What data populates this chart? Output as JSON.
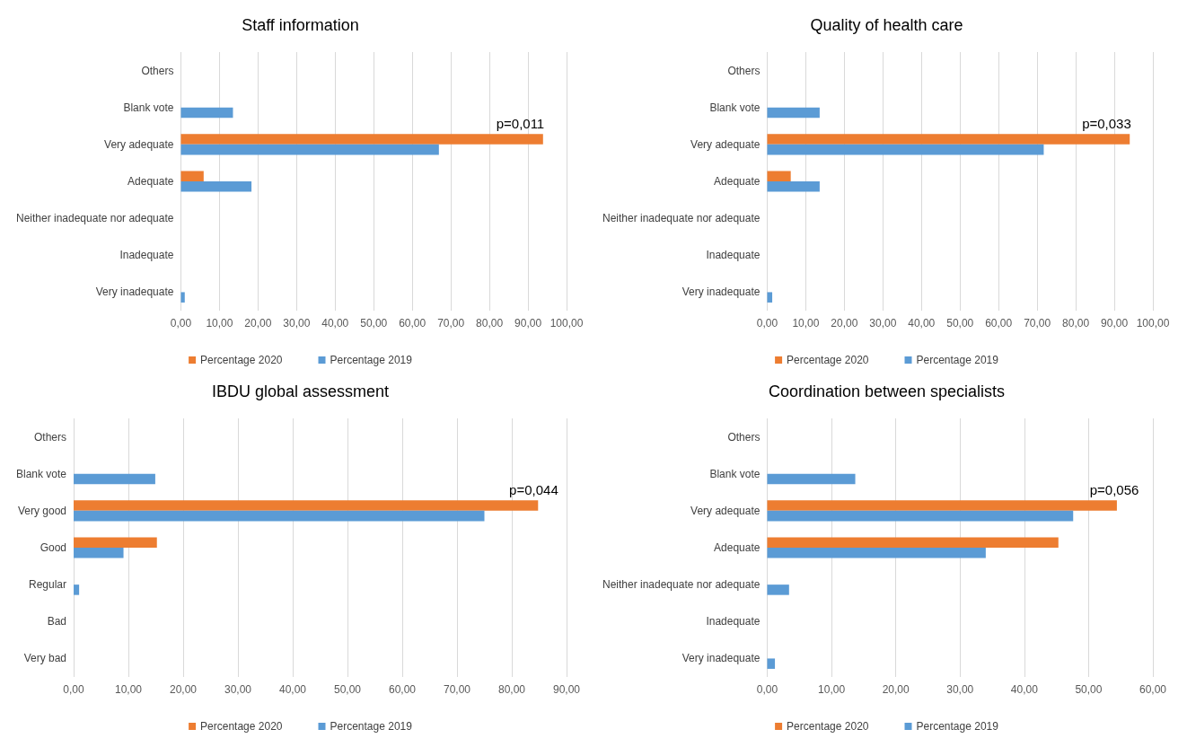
{
  "chart_data": [
    {
      "type": "bar",
      "orientation": "horizontal",
      "title": "Staff information",
      "categories": [
        "Others",
        "Blank vote",
        "Very adequate",
        "Adequate",
        "Neither inadequate nor adequate",
        "Inadequate",
        "Very inadequate"
      ],
      "series": [
        {
          "name": "Percentage 2020",
          "color": "#ed7d31",
          "values": [
            null,
            null,
            93.9,
            5.9,
            null,
            null,
            null
          ]
        },
        {
          "name": "Percentage 2019",
          "color": "#5b9bd5",
          "values": [
            null,
            13.5,
            66.9,
            18.3,
            null,
            null,
            1.0
          ]
        }
      ],
      "xlim": [
        0,
        100
      ],
      "xticks": [
        {
          "value": 0,
          "label": "0,00"
        },
        {
          "value": 10,
          "label": "10,00"
        },
        {
          "value": 20,
          "label": "20,00"
        },
        {
          "value": 30,
          "label": "30,00"
        },
        {
          "value": 40,
          "label": "40,00"
        },
        {
          "value": 50,
          "label": "50,00"
        },
        {
          "value": 60,
          "label": "60,00"
        },
        {
          "value": 70,
          "label": "70,00"
        },
        {
          "value": 80,
          "label": "80,00"
        },
        {
          "value": 90,
          "label": "90,00"
        },
        {
          "value": 100,
          "label": "100,00"
        }
      ],
      "annotations": [
        {
          "text": "p=0,011",
          "x": 88,
          "y": "Very adequate"
        }
      ],
      "grid": "x",
      "legend": "bottom"
    },
    {
      "type": "bar",
      "orientation": "horizontal",
      "title": "Quality of health care",
      "categories": [
        "Others",
        "Blank vote",
        "Very adequate",
        "Adequate",
        "Neither inadequate nor adequate",
        "Inadequate",
        "Very inadequate"
      ],
      "series": [
        {
          "name": "Percentage 2020",
          "color": "#ed7d31",
          "values": [
            null,
            null,
            94.0,
            6.1,
            null,
            null,
            null
          ]
        },
        {
          "name": "Percentage 2019",
          "color": "#5b9bd5",
          "values": [
            null,
            13.6,
            71.7,
            13.6,
            null,
            null,
            1.3
          ]
        }
      ],
      "xlim": [
        0,
        100
      ],
      "xticks": [
        {
          "value": 0,
          "label": "0,00"
        },
        {
          "value": 10,
          "label": "10,00"
        },
        {
          "value": 20,
          "label": "20,00"
        },
        {
          "value": 30,
          "label": "30,00"
        },
        {
          "value": 40,
          "label": "40,00"
        },
        {
          "value": 50,
          "label": "50,00"
        },
        {
          "value": 60,
          "label": "60,00"
        },
        {
          "value": 70,
          "label": "70,00"
        },
        {
          "value": 80,
          "label": "80,00"
        },
        {
          "value": 90,
          "label": "90,00"
        },
        {
          "value": 100,
          "label": "100,00"
        }
      ],
      "annotations": [
        {
          "text": "p=0,033",
          "x": 88,
          "y": "Very adequate"
        }
      ],
      "grid": "x",
      "legend": "bottom"
    },
    {
      "type": "bar",
      "orientation": "horizontal",
      "title": "IBDU global assessment",
      "categories": [
        "Others",
        "Blank vote",
        "Very good",
        "Good",
        "Regular",
        "Bad",
        "Very bad"
      ],
      "series": [
        {
          "name": "Percentage 2020",
          "color": "#ed7d31",
          "values": [
            null,
            null,
            84.8,
            15.2,
            null,
            null,
            null
          ]
        },
        {
          "name": "Percentage 2019",
          "color": "#5b9bd5",
          "values": [
            null,
            14.9,
            75.0,
            9.1,
            1.0,
            null,
            null
          ]
        }
      ],
      "xlim": [
        0,
        90
      ],
      "xticks": [
        {
          "value": 0,
          "label": "0,00"
        },
        {
          "value": 10,
          "label": "10,00"
        },
        {
          "value": 20,
          "label": "20,00"
        },
        {
          "value": 30,
          "label": "30,00"
        },
        {
          "value": 40,
          "label": "40,00"
        },
        {
          "value": 50,
          "label": "50,00"
        },
        {
          "value": 60,
          "label": "60,00"
        },
        {
          "value": 70,
          "label": "70,00"
        },
        {
          "value": 80,
          "label": "80,00"
        },
        {
          "value": 90,
          "label": "90,00"
        }
      ],
      "annotations": [
        {
          "text": "p=0,044",
          "x": 84,
          "y": "Very good"
        }
      ],
      "grid": "x",
      "legend": "bottom"
    },
    {
      "type": "bar",
      "orientation": "horizontal",
      "title": "Coordination between specialists",
      "categories": [
        "Others",
        "Blank vote",
        "Very adequate",
        "Adequate",
        "Neither inadequate nor adequate",
        "Inadequate",
        "Very inadequate"
      ],
      "series": [
        {
          "name": "Percentage 2020",
          "color": "#ed7d31",
          "values": [
            null,
            null,
            54.4,
            45.3,
            null,
            null,
            null
          ]
        },
        {
          "name": "Percentage 2019",
          "color": "#5b9bd5",
          "values": [
            null,
            13.7,
            47.6,
            34.0,
            3.4,
            null,
            1.2
          ]
        }
      ],
      "xlim": [
        0,
        60
      ],
      "xticks": [
        {
          "value": 0,
          "label": "0,00"
        },
        {
          "value": 10,
          "label": "10,00"
        },
        {
          "value": 20,
          "label": "20,00"
        },
        {
          "value": 30,
          "label": "30,00"
        },
        {
          "value": 40,
          "label": "40,00"
        },
        {
          "value": 50,
          "label": "50,00"
        },
        {
          "value": 60,
          "label": "60,00"
        }
      ],
      "annotations": [
        {
          "text": "p=0,056",
          "x": 54,
          "y": "Very adequate"
        }
      ],
      "grid": "x",
      "legend": "bottom"
    }
  ]
}
